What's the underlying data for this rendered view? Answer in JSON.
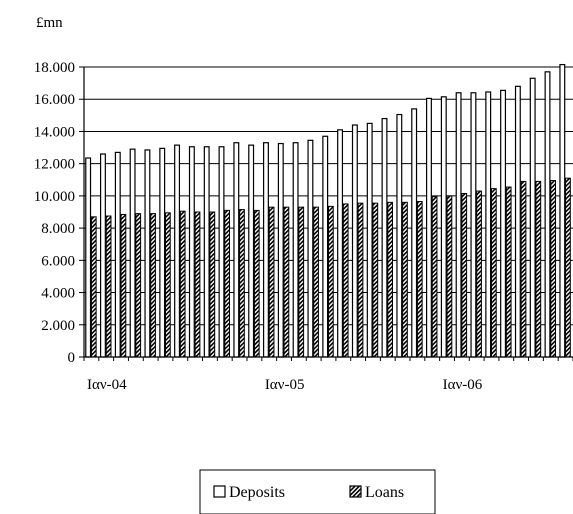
{
  "chart_data": {
    "type": "bar",
    "unit_label": "£mn",
    "title": "",
    "xlabel": "",
    "ylabel": "",
    "ylim": [
      0,
      18000
    ],
    "y_ticks": [
      0,
      2000,
      4000,
      6000,
      8000,
      10000,
      12000,
      14000,
      16000,
      18000
    ],
    "y_tick_labels": [
      "0",
      "2.000",
      "4.000",
      "6.000",
      "8.000",
      "10.000",
      "12.000",
      "14.000",
      "16.000",
      "18.000"
    ],
    "grid": true,
    "x_tick_labels": [
      {
        "label": "Ιαν-04",
        "index": 0
      },
      {
        "label": "Ιαν-05",
        "index": 12
      },
      {
        "label": "Ιαν-06",
        "index": 24
      }
    ],
    "legend_position": "bottom",
    "series": [
      {
        "name": "Deposits",
        "color": "#ffffff",
        "pattern": "none",
        "values": [
          12350,
          12600,
          12700,
          12900,
          12850,
          12950,
          13150,
          13050,
          13050,
          13050,
          13300,
          13150,
          13300,
          13250,
          13300,
          13450,
          13700,
          14100,
          14400,
          14500,
          14800,
          15050,
          15400,
          16050,
          16150,
          16400,
          16400,
          16450,
          16550,
          16800,
          17300,
          17700,
          18150
        ]
      },
      {
        "name": "Loans",
        "color": "#000000",
        "pattern": "hatch",
        "values": [
          8700,
          8750,
          8850,
          8900,
          8900,
          8950,
          9050,
          9000,
          9000,
          9100,
          9150,
          9100,
          9300,
          9300,
          9300,
          9300,
          9350,
          9500,
          9550,
          9550,
          9600,
          9600,
          9650,
          9950,
          10000,
          10150,
          10300,
          10450,
          10550,
          10900,
          10900,
          10950,
          11100
        ]
      }
    ]
  }
}
